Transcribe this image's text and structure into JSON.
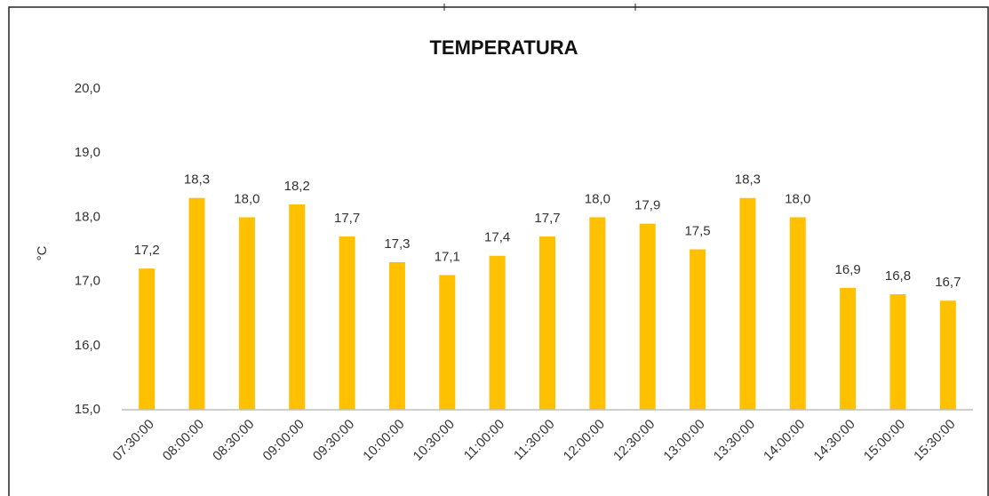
{
  "chart_data": {
    "type": "bar",
    "title": "TEMPERATURA",
    "y_label": "°C",
    "categories": [
      "07:30:00",
      "08:00:00",
      "08:30:00",
      "09:00:00",
      "09:30:00",
      "10:00:00",
      "10:30:00",
      "11:00:00",
      "11:30:00",
      "12:00:00",
      "12:30:00",
      "13:00:00",
      "13:30:00",
      "14:00:00",
      "14:30:00",
      "15:00:00",
      "15:30:00"
    ],
    "values": [
      17.2,
      18.3,
      18.0,
      18.2,
      17.7,
      17.3,
      17.1,
      17.4,
      17.7,
      18.0,
      17.9,
      17.5,
      18.3,
      18.0,
      16.9,
      16.8,
      16.7
    ],
    "value_labels": [
      "17,2",
      "18,3",
      "18,0",
      "18,2",
      "17,7",
      "17,3",
      "17,1",
      "17,4",
      "17,7",
      "18,0",
      "17,9",
      "17,5",
      "18,3",
      "18,0",
      "16,9",
      "16,8",
      "16,7"
    ],
    "color": "#ffc000",
    "ylim": [
      15,
      20
    ],
    "yticks": [
      {
        "value": 15,
        "label": "15,0"
      },
      {
        "value": 16,
        "label": "16,0"
      },
      {
        "value": 17,
        "label": "17,0"
      },
      {
        "value": 18,
        "label": "18,0"
      },
      {
        "value": 19,
        "label": "19,0"
      },
      {
        "value": 20,
        "label": "20,0"
      }
    ],
    "grid": false
  }
}
